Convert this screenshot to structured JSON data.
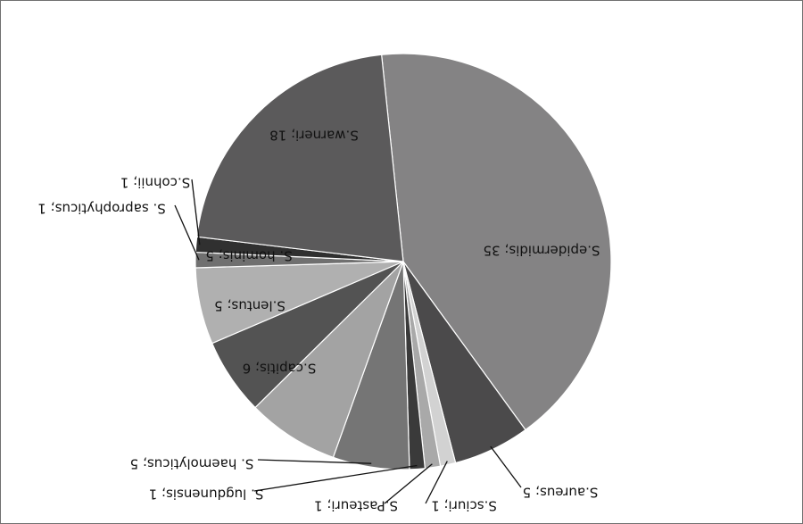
{
  "chart_data": {
    "type": "pie",
    "title": "",
    "legend": "none",
    "categories": [
      "S.epidermidis",
      "S.aureus",
      "S.sciuri",
      "S.Pasteuri",
      "S. lugdunensis",
      "S. haemolyticus",
      "S.capitis",
      "S.lentus",
      "S. hominis",
      "S. saprophyticus",
      "S.cohnii",
      "S.warneri"
    ],
    "values": [
      35,
      5,
      1,
      1,
      1,
      5,
      6,
      5,
      5,
      1,
      1,
      18
    ],
    "labels": [
      "S.epidermidis; 35",
      "S.aureus; 5",
      "S.sciuri; 1",
      "S.Pasteuri; 1",
      "S. lugdunensis; 1",
      "S. haemolyticus; 5",
      "S.capitis; 6",
      "S.lentus; 5",
      "S. hominis; 5",
      "S. saprophyticus; 1",
      "S.cohnii; 1",
      "S.warneri; 18"
    ],
    "colors": [
      "#848384",
      "#4b4a4b",
      "#d2d2d2",
      "#a9a9a9",
      "#3a3a3a",
      "#757575",
      "#a3a3a3",
      "#535353",
      "#b0b0b0",
      "#707070",
      "#303030",
      "#5b5a5b"
    ],
    "orientation": "rotated-180"
  }
}
